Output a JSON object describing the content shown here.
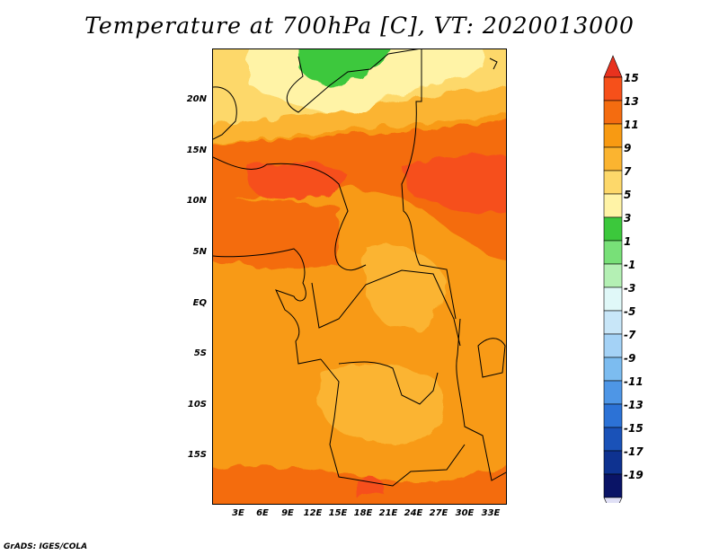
{
  "title": "Temperature at 700hPa [C], VT: 2020013000",
  "credit": "GrADS: IGES/COLA",
  "map": {
    "x_ticks": [
      "3E",
      "6E",
      "9E",
      "12E",
      "15E",
      "18E",
      "21E",
      "24E",
      "27E",
      "30E",
      "33E"
    ],
    "y_ticks": [
      "20N",
      "15N",
      "10N",
      "5N",
      "EQ",
      "5S",
      "10S",
      "15S"
    ]
  },
  "colorbar": {
    "labels": [
      "15",
      "13",
      "11",
      "9",
      "7",
      "5",
      "3",
      "1",
      "-1",
      "-3",
      "-5",
      "-7",
      "-9",
      "-11",
      "-13",
      "-15",
      "-17",
      "-19"
    ],
    "colors": [
      "#e8321e",
      "#f6501a",
      "#f46c10",
      "#f89a12",
      "#fbb430",
      "#fdd86a",
      "#fff3a6",
      "#3cc83c",
      "#78e078",
      "#b4f0b4",
      "#e0f8f8",
      "#c8e6f8",
      "#a4d2f6",
      "#7cbcf0",
      "#4e96e6",
      "#2c72d6",
      "#1a52b8",
      "#0e3290",
      "#0a1466",
      "#e0e0f6"
    ]
  }
}
